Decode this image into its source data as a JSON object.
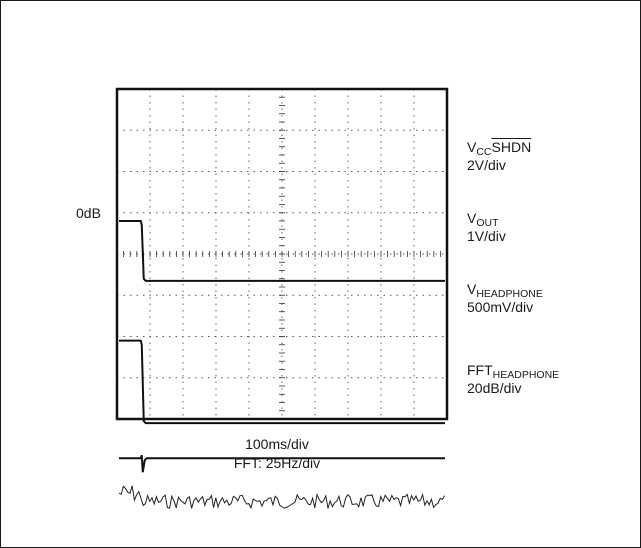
{
  "chart_data": {
    "type": "line",
    "grid": true,
    "reference_marker": "0dB",
    "time_scale": "100ms/div",
    "fft_scale": "FFT: 25Hz/div",
    "traces": [
      {
        "name_main": "V",
        "name_sub": "CC",
        "name_over": "SHDN",
        "scale": "2V/div",
        "level_before": 0.8,
        "level_after": -0.65,
        "edge_div": 0.72
      },
      {
        "name_main": "V",
        "name_sub": "OUT",
        "name_over": "",
        "scale": "1V/div",
        "level_before": -2.1,
        "level_after": -4.1,
        "edge_div": 0.72
      },
      {
        "name_main": "V",
        "name_sub": "HEADPHONE",
        "name_over": "",
        "scale": "500mV/div",
        "level_before": -4.95,
        "level_after": -4.95,
        "edge_div": 0.72
      },
      {
        "name_main": "FFT",
        "name_sub": "HEADPHONE",
        "name_over": "",
        "scale": "20dB/div",
        "level_before": -5.8,
        "level_after": -6.0,
        "edge_div": 0.72
      }
    ]
  }
}
